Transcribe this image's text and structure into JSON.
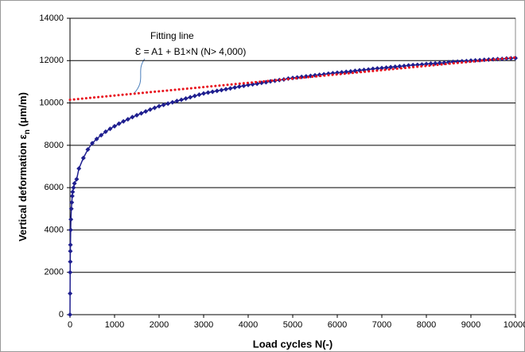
{
  "chart_data": {
    "type": "line",
    "xlabel": "Load cycles N(-)",
    "ylabel": "Vertical deformation ε",
    "ylabel_sub": "n",
    "ylabel_unit": " (μm/m)",
    "annotations": [
      "Fitting line",
      "Ɛ = A1 + B1×N (N> 4,000)"
    ],
    "xlim": [
      0,
      10000
    ],
    "xticks": [
      0,
      1000,
      2000,
      3000,
      4000,
      5000,
      6000,
      7000,
      8000,
      9000,
      10000
    ],
    "ylim": [
      0,
      14000
    ],
    "yticks": [
      0,
      2000,
      4000,
      6000,
      8000,
      10000,
      12000,
      14000
    ],
    "grid": true,
    "series": [
      {
        "color": "#1f1f8f",
        "markers": true,
        "x": [
          0,
          2,
          4,
          6,
          8,
          10,
          15,
          20,
          30,
          40,
          50,
          60,
          80,
          100,
          150,
          200,
          300,
          400,
          500,
          600,
          700,
          800,
          900,
          1000,
          1100,
          1200,
          1300,
          1400,
          1500,
          1600,
          1700,
          1800,
          1900,
          2000,
          2100,
          2200,
          2300,
          2400,
          2500,
          2600,
          2700,
          2800,
          2900,
          3000,
          3100,
          3200,
          3300,
          3400,
          3500,
          3600,
          3700,
          3800,
          3900,
          4000,
          4100,
          4200,
          4300,
          4400,
          4500,
          4600,
          4700,
          4800,
          4900,
          5000,
          5100,
          5200,
          5300,
          5400,
          5500,
          5600,
          5700,
          5800,
          5900,
          6000,
          6100,
          6200,
          6300,
          6400,
          6500,
          6600,
          6700,
          6800,
          6900,
          7000,
          7100,
          7200,
          7300,
          7400,
          7500,
          7600,
          7700,
          7800,
          7900,
          8000,
          8100,
          8200,
          8300,
          8400,
          8500,
          8600,
          8700,
          8800,
          8900,
          9000,
          9100,
          9200,
          9300,
          9400,
          9500,
          9600,
          9700,
          9800,
          9900,
          10000
        ],
        "values": [
          0,
          1000,
          2000,
          2500,
          3000,
          3300,
          4000,
          4500,
          5000,
          5300,
          5600,
          5800,
          6000,
          6200,
          6400,
          6900,
          7400,
          7800,
          8100,
          8300,
          8480,
          8640,
          8780,
          8900,
          9020,
          9130,
          9230,
          9330,
          9420,
          9510,
          9600,
          9690,
          9770,
          9850,
          9910,
          9970,
          10030,
          10090,
          10150,
          10210,
          10270,
          10330,
          10390,
          10450,
          10490,
          10530,
          10570,
          10610,
          10650,
          10690,
          10730,
          10770,
          10810,
          10850,
          10880,
          10910,
          10950,
          10980,
          11020,
          11050,
          11080,
          11110,
          11150,
          11180,
          11205,
          11230,
          11255,
          11280,
          11305,
          11330,
          11355,
          11380,
          11405,
          11430,
          11450,
          11470,
          11490,
          11520,
          11540,
          11560,
          11580,
          11610,
          11630,
          11650,
          11670,
          11690,
          11710,
          11730,
          11750,
          11770,
          11790,
          11800,
          11820,
          11840,
          11860,
          11870,
          11890,
          11900,
          11920,
          11940,
          11950,
          11970,
          11980,
          12000,
          12010,
          12020,
          12040,
          12050,
          12060,
          12070,
          12080,
          12100,
          12110,
          12120
        ]
      },
      {
        "color": "#e8141e",
        "dotted": true,
        "x": [
          0,
          10000
        ],
        "values": [
          10150,
          12150
        ]
      }
    ]
  }
}
